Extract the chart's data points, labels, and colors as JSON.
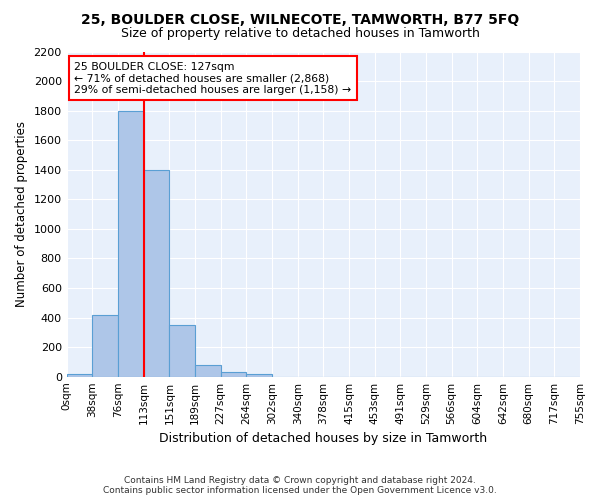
{
  "title1": "25, BOULDER CLOSE, WILNECOTE, TAMWORTH, B77 5FQ",
  "title2": "Size of property relative to detached houses in Tamworth",
  "xlabel": "Distribution of detached houses by size in Tamworth",
  "ylabel": "Number of detached properties",
  "bar_values": [
    15,
    420,
    1800,
    1400,
    350,
    80,
    30,
    15,
    0,
    0,
    0,
    0,
    0,
    0,
    0,
    0,
    0,
    0,
    0,
    0
  ],
  "bin_labels": [
    "0sqm",
    "38sqm",
    "76sqm",
    "113sqm",
    "151sqm",
    "189sqm",
    "227sqm",
    "264sqm",
    "302sqm",
    "340sqm",
    "378sqm",
    "415sqm",
    "453sqm",
    "491sqm",
    "529sqm",
    "566sqm",
    "604sqm",
    "642sqm",
    "680sqm",
    "717sqm",
    "755sqm"
  ],
  "bar_color": "#aec6e8",
  "bar_edge_color": "#5a9fd4",
  "vline_x": 3.0,
  "vline_color": "red",
  "annotation_text": "25 BOULDER CLOSE: 127sqm\n← 71% of detached houses are smaller (2,868)\n29% of semi-detached houses are larger (1,158) →",
  "annotation_box_color": "white",
  "annotation_box_edge": "red",
  "ylim": [
    0,
    2200
  ],
  "yticks": [
    0,
    200,
    400,
    600,
    800,
    1000,
    1200,
    1400,
    1600,
    1800,
    2000,
    2200
  ],
  "background_color": "#e8f0fb",
  "footer_line1": "Contains HM Land Registry data © Crown copyright and database right 2024.",
  "footer_line2": "Contains public sector information licensed under the Open Government Licence v3.0."
}
